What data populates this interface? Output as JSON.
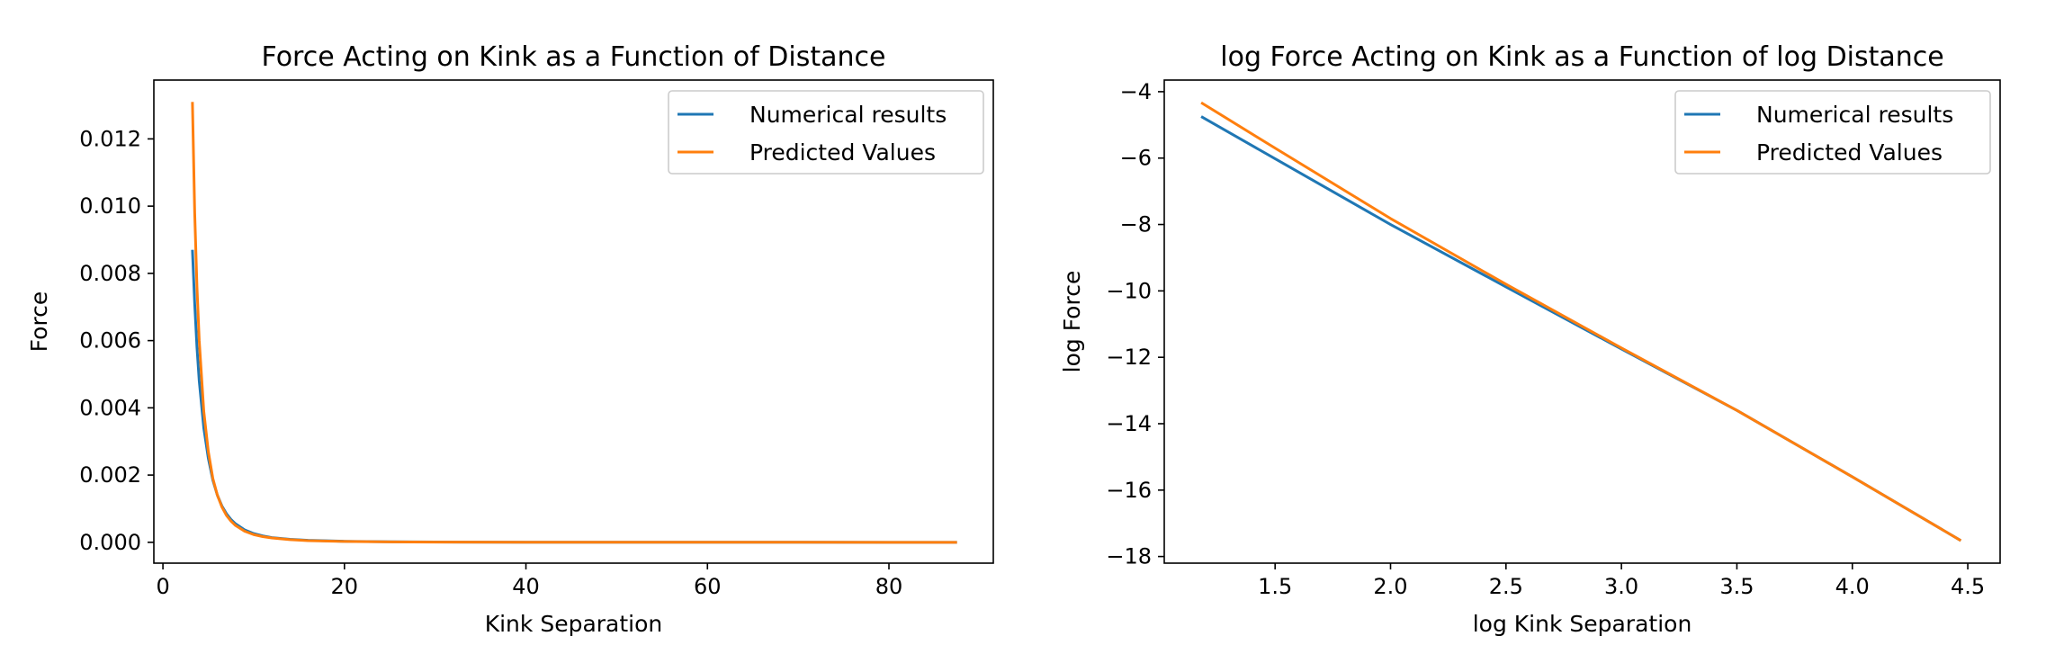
{
  "chart_data": [
    {
      "type": "line",
      "title": "Force Acting on Kink as a Function of Distance",
      "xlabel": "Kink Separation",
      "ylabel": "Force",
      "xlim": [
        -1.0,
        91.5
      ],
      "ylim": [
        -0.00062,
        0.01375
      ],
      "xticks": [
        0,
        20,
        40,
        60,
        80
      ],
      "xtick_labels": [
        "0",
        "20",
        "40",
        "60",
        "80"
      ],
      "yticks": [
        0.0,
        0.002,
        0.004,
        0.006,
        0.008,
        0.01,
        0.012
      ],
      "ytick_labels": [
        "0.000",
        "0.002",
        "0.004",
        "0.006",
        "0.008",
        "0.010",
        "0.012"
      ],
      "legend_position": "upper right",
      "grid": false,
      "series": [
        {
          "name": "Numerical results",
          "color": "#1f77b4",
          "x": [
            3.25,
            3.5,
            3.75,
            4,
            4.5,
            5,
            5.5,
            6,
            6.5,
            7,
            7.5,
            8,
            9,
            10,
            11,
            12,
            14,
            16,
            20,
            25,
            30,
            40,
            50,
            60,
            70,
            80,
            87.5
          ],
          "y": [
            0.0087,
            0.0071,
            0.0058,
            0.0048,
            0.0034,
            0.0025,
            0.00185,
            0.0014,
            0.00108,
            0.00085,
            0.00068,
            0.00055,
            0.00037,
            0.00026,
            0.00019,
            0.00014,
            9e-05,
            6e-05,
            3e-05,
            1.5e-05,
            8e-06,
            3e-06,
            1.5e-06,
            8e-07,
            5e-07,
            3e-07,
            2e-07
          ]
        },
        {
          "name": "Predicted Values",
          "color": "#ff7f0e",
          "x": [
            3.25,
            3.5,
            3.75,
            4,
            4.5,
            5,
            5.5,
            6,
            6.5,
            7,
            7.5,
            8,
            9,
            10,
            11,
            12,
            14,
            16,
            20,
            25,
            30,
            40,
            50,
            60,
            70,
            80,
            87.5
          ],
          "y": [
            0.0131,
            0.0098,
            0.0076,
            0.006,
            0.0039,
            0.0027,
            0.0019,
            0.0014,
            0.00105,
            0.0008,
            0.00063,
            0.0005,
            0.00033,
            0.00023,
            0.00017,
            0.00013,
            8e-05,
            5e-05,
            2.5e-05,
            1.2e-05,
            7e-06,
            3e-06,
            1.5e-06,
            8e-07,
            5e-07,
            3e-07,
            2e-07
          ]
        }
      ]
    },
    {
      "type": "line",
      "title": "log Force Acting on Kink as a Function of log Distance",
      "xlabel": "log Kink Separation",
      "ylabel": "log Force",
      "xlim": [
        1.02,
        4.64
      ],
      "ylim": [
        -18.2,
        -3.65
      ],
      "xticks": [
        1.5,
        2.0,
        2.5,
        3.0,
        3.5,
        4.0,
        4.5
      ],
      "xtick_labels": [
        "1.5",
        "2.0",
        "2.5",
        "3.0",
        "3.5",
        "4.0",
        "4.5"
      ],
      "yticks": [
        -18,
        -16,
        -14,
        -12,
        -10,
        -8,
        -6,
        -4
      ],
      "ytick_labels": [
        "−18",
        "−16",
        "−14",
        "−12",
        "−10",
        "−8",
        "−6",
        "−4"
      ],
      "legend_position": "upper right",
      "grid": false,
      "series": [
        {
          "name": "Numerical results",
          "color": "#1f77b4",
          "x": [
            1.18,
            1.5,
            2.0,
            2.5,
            3.0,
            3.5,
            4.0,
            4.47
          ],
          "y": [
            -4.75,
            -6.02,
            -8.0,
            -9.88,
            -11.75,
            -13.6,
            -15.6,
            -17.52
          ]
        },
        {
          "name": "Predicted Values",
          "color": "#ff7f0e",
          "x": [
            1.18,
            1.5,
            2.0,
            2.5,
            3.0,
            3.5,
            4.0,
            4.47
          ],
          "y": [
            -4.33,
            -5.7,
            -7.82,
            -9.8,
            -11.72,
            -13.6,
            -15.6,
            -17.52
          ]
        }
      ]
    }
  ]
}
